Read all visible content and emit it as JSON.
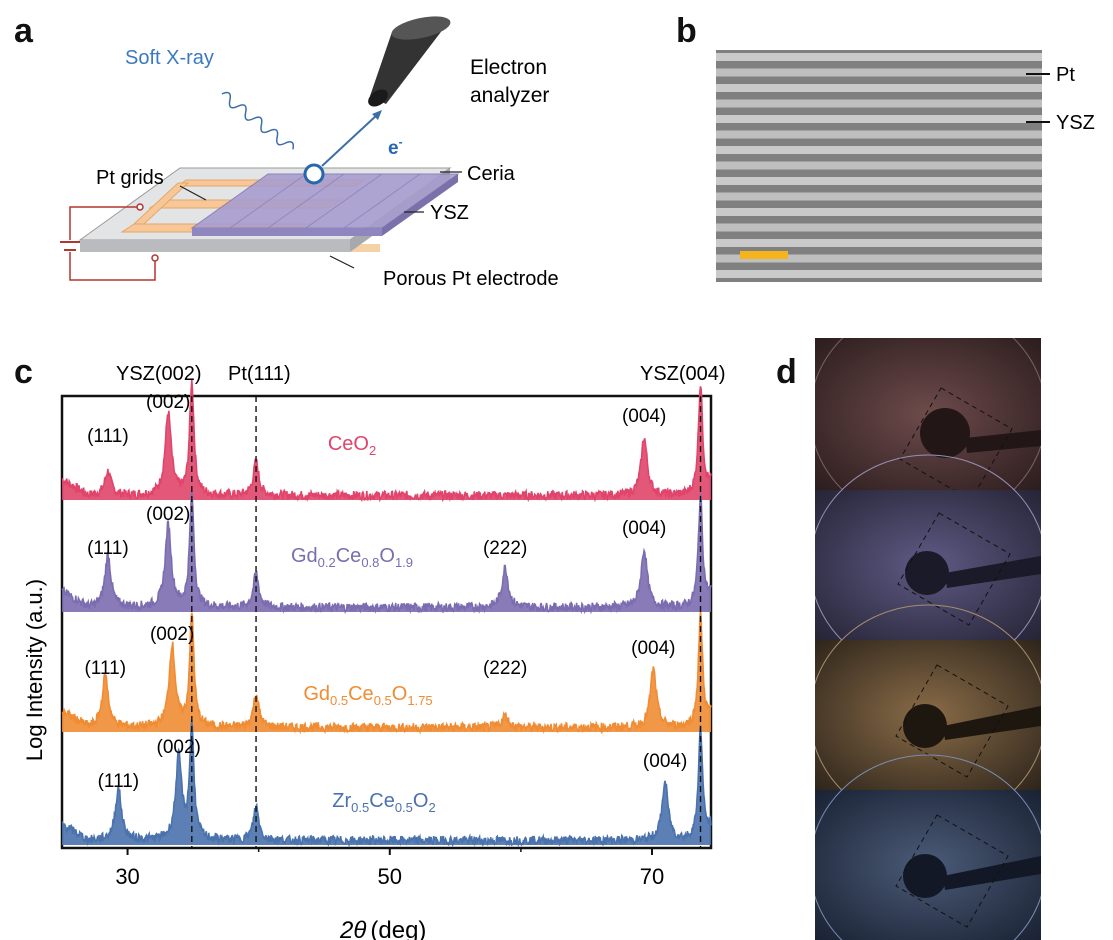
{
  "panels": {
    "a": "a",
    "b": "b",
    "c": "c",
    "d": "d"
  },
  "panel_a": {
    "soft_xray": "Soft X-ray",
    "electron": "e",
    "electron_sup": "-",
    "analyzer_line1": "Electron",
    "analyzer_line2": "analyzer",
    "pt_grids": "Pt grids",
    "ceria": "Ceria",
    "ysz": "YSZ",
    "porous": "Porous Pt electrode"
  },
  "panel_b": {
    "pt": "Pt",
    "ysz": "YSZ",
    "scale_bar_color": "#f5b31c"
  },
  "colors": {
    "ceo2": "#e0456a",
    "gdc02": "#7b6db0",
    "gdc05": "#f08c34",
    "zrc": "#4a72ad"
  },
  "chart_data": {
    "type": "line",
    "xlabel_symbol": "2θ",
    "xlabel_unit": "(deg)",
    "ylabel": "Log Intensity (a.u.)",
    "xlim": [
      25,
      74.5
    ],
    "xticks": [
      30,
      50,
      70
    ],
    "reference_lines": [
      {
        "label": "YSZ(002)",
        "x": 34.9
      },
      {
        "label": "Pt(111)",
        "x": 39.8
      },
      {
        "label": "YSZ(004)",
        "x": 73.7
      }
    ],
    "series": [
      {
        "name": "CeO",
        "sub": "2",
        "peaks": [
          {
            "label": "(111)",
            "x": 28.5
          },
          {
            "label": "(002)",
            "x": 33.1
          },
          {
            "label": "(004)",
            "x": 69.4
          }
        ]
      },
      {
        "name": "GdCeO",
        "name_parts": [
          [
            "Gd",
            ""
          ],
          [
            "0.2",
            "sub"
          ],
          [
            "Ce",
            ""
          ],
          [
            "0.8",
            "sub"
          ],
          [
            "O",
            ""
          ],
          [
            "1.9",
            "sub"
          ]
        ],
        "peaks": [
          {
            "label": "(111)",
            "x": 28.5
          },
          {
            "label": "(002)",
            "x": 33.1
          },
          {
            "label": "(222)",
            "x": 58.8
          },
          {
            "label": "(004)",
            "x": 69.4
          }
        ]
      },
      {
        "name": "GdCeO",
        "name_parts": [
          [
            "Gd",
            ""
          ],
          [
            "0.5",
            "sub"
          ],
          [
            "Ce",
            ""
          ],
          [
            "0.5",
            "sub"
          ],
          [
            "O",
            ""
          ],
          [
            "1.75",
            "sub"
          ]
        ],
        "peaks": [
          {
            "label": "(111)",
            "x": 28.3
          },
          {
            "label": "(002)",
            "x": 33.4
          },
          {
            "label": "(222)",
            "x": 58.8
          },
          {
            "label": "(004)",
            "x": 70.1
          }
        ]
      },
      {
        "name": "ZrCeO",
        "name_parts": [
          [
            "Zr",
            ""
          ],
          [
            "0.5",
            "sub"
          ],
          [
            "Ce",
            ""
          ],
          [
            "0.5",
            "sub"
          ],
          [
            "O",
            ""
          ],
          [
            "2",
            "sub"
          ]
        ],
        "peaks": [
          {
            "label": "(111)",
            "x": 29.3
          },
          {
            "label": "(002)",
            "x": 33.9
          },
          {
            "label": "(004)",
            "x": 71.0
          }
        ]
      }
    ]
  }
}
